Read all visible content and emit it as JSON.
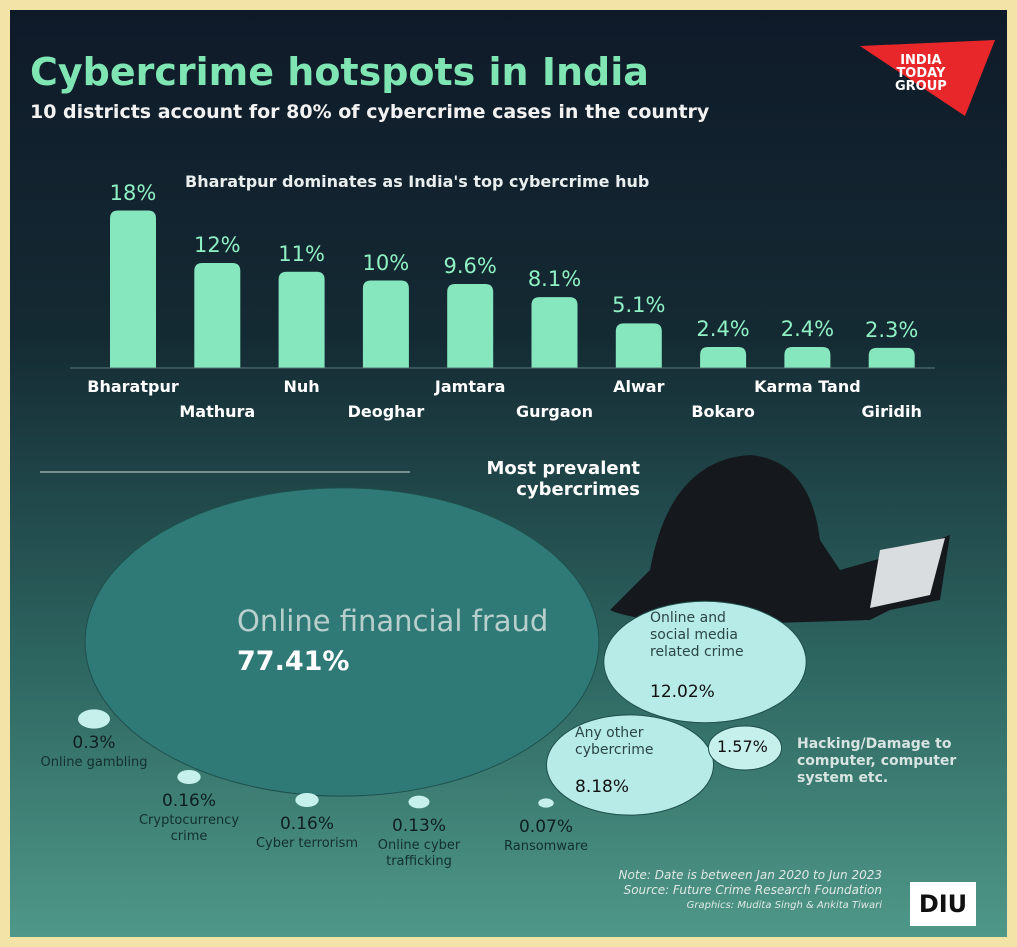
{
  "header": {
    "title": "Cybercrime hotspots in India",
    "subtitle": "10 districts account for 80% of cybercrime cases in the country",
    "logo": [
      "INDIA",
      "TODAY",
      "GROUP"
    ]
  },
  "chart_data": [
    {
      "type": "bar",
      "title": "Bharatpur dominates as India's top cybercrime hub",
      "categories": [
        "Bharatpur",
        "Mathura",
        "Nuh",
        "Deoghar",
        "Jamtara",
        "Gurgaon",
        "Alwar",
        "Bokaro",
        "Karma Tand",
        "Giridih"
      ],
      "values": [
        18,
        12,
        11,
        10,
        9.6,
        8.1,
        5.1,
        2.4,
        2.4,
        2.3
      ],
      "value_labels": [
        "18%",
        "12%",
        "11%",
        "10%",
        "9.6%",
        "8.1%",
        "5.1%",
        "2.4%",
        "2.4%",
        "2.3%"
      ],
      "color": "#86e6bd",
      "ylim": [
        0,
        20
      ]
    },
    {
      "type": "bubble",
      "title": "Most prevalent cybercrimes",
      "categories": [
        "Online financial fraud",
        "Online and social media related crime",
        "Any other cybercrime",
        "Hacking/Damage to computer, computer system etc.",
        "Online gambling",
        "Cryptocurrency crime",
        "Cyber terrorism",
        "Online cyber trafficking",
        "Ransomware"
      ],
      "values": [
        77.41,
        12.02,
        8.18,
        1.57,
        0.3,
        0.16,
        0.16,
        0.13,
        0.07
      ],
      "value_labels": [
        "77.41%",
        "12.02%",
        "8.18%",
        "1.57%",
        "0.3%",
        "0.16%",
        "0.16%",
        "0.13%",
        "0.07%"
      ],
      "colors": [
        "#2f7a77",
        "#b7ebe7",
        "#b7ebe7",
        "#c6f0ec",
        "#c6f0ec",
        "#c6f0ec",
        "#c6f0ec",
        "#c6f0ec",
        "#c6f0ec"
      ]
    }
  ],
  "footer": {
    "notes": [
      "Note: Date is between Jan 2020 to Jun 2023",
      "Source: Future Crime Research Foundation",
      "Graphics: Mudita Singh & Ankita Tiwari"
    ],
    "logo": "DIU"
  }
}
